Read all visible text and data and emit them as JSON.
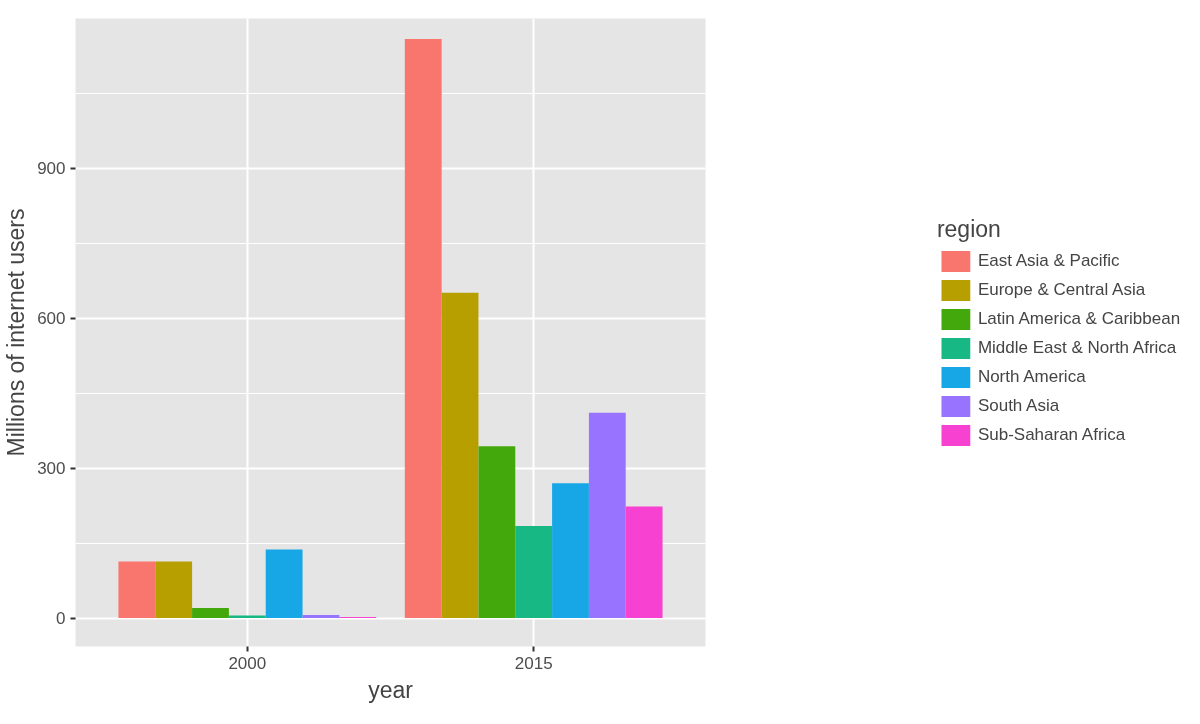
{
  "chart_data": {
    "type": "bar",
    "xlabel": "year",
    "ylabel": "Millions of internet users",
    "legend_title": "region",
    "categories": [
      "2000",
      "2015"
    ],
    "series": [
      {
        "name": "East Asia & Pacific",
        "color": "#f8766d",
        "values": [
          113,
          1159
        ]
      },
      {
        "name": "Europe & Central Asia",
        "color": "#b79f00",
        "values": [
          113,
          651
        ]
      },
      {
        "name": "Latin America & Caribbean",
        "color": "#43a80b",
        "values": [
          20,
          344
        ]
      },
      {
        "name": "Middle East & North Africa",
        "color": "#18b884",
        "values": [
          5,
          184
        ]
      },
      {
        "name": "North America",
        "color": "#17a6e6",
        "values": [
          137,
          270
        ]
      },
      {
        "name": "South Asia",
        "color": "#9873ff",
        "values": [
          6,
          411
        ]
      },
      {
        "name": "Sub-Saharan Africa",
        "color": "#f741d0",
        "values": [
          2,
          223
        ]
      }
    ],
    "ylim": [
      -57,
      1200
    ],
    "yticks": [
      0,
      {
        "value": 150,
        "label": null
      },
      300,
      {
        "value": 450,
        "label": null
      },
      600,
      {
        "value": 750,
        "label": null
      },
      900,
      {
        "value": 1050,
        "label": null
      }
    ],
    "grid": true,
    "legend": "right"
  }
}
